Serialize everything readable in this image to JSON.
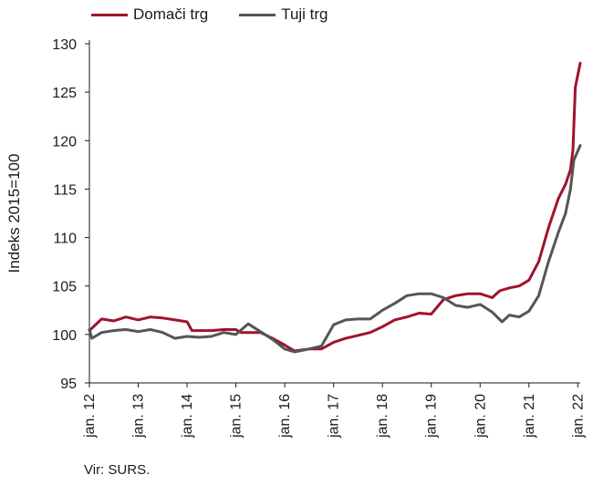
{
  "legend": {
    "domestic": "Domači trg",
    "foreign": "Tuji trg"
  },
  "source": "Vir: SURS.",
  "colors": {
    "domestic": "#a0132e",
    "foreign": "#555555"
  },
  "chart_data": {
    "type": "line",
    "ylabel": "Indeks 2015=100",
    "ylim": [
      95,
      130
    ],
    "yticks": [
      95,
      100,
      105,
      110,
      115,
      120,
      125,
      130
    ],
    "xlim": [
      2012,
      2022.05
    ],
    "xticks": [
      {
        "x": 2012,
        "label": "jan. 12"
      },
      {
        "x": 2013,
        "label": "jan. 13"
      },
      {
        "x": 2014,
        "label": "jan. 14"
      },
      {
        "x": 2015,
        "label": "jan. 15"
      },
      {
        "x": 2016,
        "label": "jan. 16"
      },
      {
        "x": 2017,
        "label": "jan. 17"
      },
      {
        "x": 2018,
        "label": "jan. 18"
      },
      {
        "x": 2019,
        "label": "jan. 19"
      },
      {
        "x": 2020,
        "label": "jan. 20"
      },
      {
        "x": 2021,
        "label": "jan. 21"
      },
      {
        "x": 2022,
        "label": "jan. 22"
      }
    ],
    "grid": false,
    "legend_position": "top-left",
    "series": [
      {
        "name": "Domači trg",
        "key": "domestic",
        "points": [
          [
            2012.0,
            100.4
          ],
          [
            2012.25,
            101.6
          ],
          [
            2012.5,
            101.4
          ],
          [
            2012.75,
            101.8
          ],
          [
            2013.0,
            101.5
          ],
          [
            2013.25,
            101.8
          ],
          [
            2013.5,
            101.7
          ],
          [
            2013.75,
            101.5
          ],
          [
            2014.0,
            101.3
          ],
          [
            2014.1,
            100.4
          ],
          [
            2014.5,
            100.4
          ],
          [
            2014.75,
            100.5
          ],
          [
            2015.0,
            100.5
          ],
          [
            2015.1,
            100.2
          ],
          [
            2015.5,
            100.2
          ],
          [
            2015.75,
            99.6
          ],
          [
            2016.0,
            98.9
          ],
          [
            2016.2,
            98.3
          ],
          [
            2016.5,
            98.5
          ],
          [
            2016.75,
            98.5
          ],
          [
            2017.0,
            99.2
          ],
          [
            2017.25,
            99.6
          ],
          [
            2017.5,
            99.9
          ],
          [
            2017.75,
            100.2
          ],
          [
            2018.0,
            100.8
          ],
          [
            2018.25,
            101.5
          ],
          [
            2018.5,
            101.8
          ],
          [
            2018.75,
            102.2
          ],
          [
            2019.0,
            102.1
          ],
          [
            2019.25,
            103.6
          ],
          [
            2019.5,
            104.0
          ],
          [
            2019.75,
            104.2
          ],
          [
            2020.0,
            104.2
          ],
          [
            2020.25,
            103.8
          ],
          [
            2020.4,
            104.5
          ],
          [
            2020.6,
            104.8
          ],
          [
            2020.8,
            105.0
          ],
          [
            2021.0,
            105.6
          ],
          [
            2021.2,
            107.5
          ],
          [
            2021.4,
            111.0
          ],
          [
            2021.6,
            114.0
          ],
          [
            2021.75,
            115.5
          ],
          [
            2021.85,
            117.0
          ],
          [
            2021.9,
            119.0
          ],
          [
            2021.95,
            125.5
          ],
          [
            2022.05,
            128.0
          ]
        ]
      },
      {
        "name": "Tuji trg",
        "key": "foreign",
        "points": [
          [
            2012.0,
            100.5
          ],
          [
            2012.05,
            99.6
          ],
          [
            2012.25,
            100.2
          ],
          [
            2012.5,
            100.4
          ],
          [
            2012.75,
            100.5
          ],
          [
            2013.0,
            100.3
          ],
          [
            2013.25,
            100.5
          ],
          [
            2013.5,
            100.2
          ],
          [
            2013.75,
            99.6
          ],
          [
            2014.0,
            99.8
          ],
          [
            2014.25,
            99.7
          ],
          [
            2014.5,
            99.8
          ],
          [
            2014.75,
            100.2
          ],
          [
            2015.0,
            100.0
          ],
          [
            2015.25,
            101.1
          ],
          [
            2015.5,
            100.3
          ],
          [
            2015.75,
            99.5
          ],
          [
            2016.0,
            98.5
          ],
          [
            2016.2,
            98.2
          ],
          [
            2016.5,
            98.5
          ],
          [
            2016.75,
            98.8
          ],
          [
            2017.0,
            101.0
          ],
          [
            2017.25,
            101.5
          ],
          [
            2017.5,
            101.6
          ],
          [
            2017.75,
            101.6
          ],
          [
            2018.0,
            102.5
          ],
          [
            2018.25,
            103.2
          ],
          [
            2018.5,
            104.0
          ],
          [
            2018.75,
            104.2
          ],
          [
            2019.0,
            104.2
          ],
          [
            2019.25,
            103.8
          ],
          [
            2019.5,
            103.0
          ],
          [
            2019.75,
            102.8
          ],
          [
            2020.0,
            103.1
          ],
          [
            2020.25,
            102.3
          ],
          [
            2020.45,
            101.3
          ],
          [
            2020.6,
            102.0
          ],
          [
            2020.8,
            101.8
          ],
          [
            2021.0,
            102.4
          ],
          [
            2021.2,
            104.0
          ],
          [
            2021.4,
            107.5
          ],
          [
            2021.6,
            110.5
          ],
          [
            2021.75,
            112.5
          ],
          [
            2021.85,
            115.0
          ],
          [
            2021.92,
            118.0
          ],
          [
            2022.05,
            119.5
          ]
        ]
      }
    ]
  }
}
